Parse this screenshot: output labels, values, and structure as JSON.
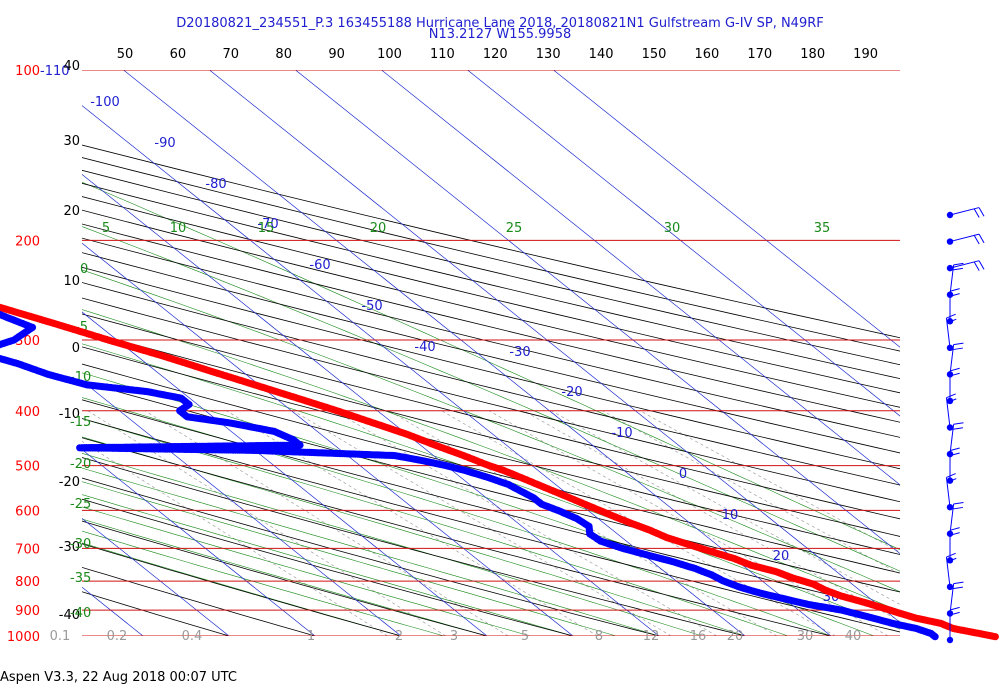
{
  "header": {
    "line1": "D20180821_234551_P.3 163455188 Hurricane Lane 2018, 20180821N1 Gulfstream G-IV SP, N49RF",
    "line2": "N13.2127 W155.9958"
  },
  "footer": "Aspen V3.3, 22 Aug 2018  00:07 UTC",
  "chart_data": {
    "type": "line",
    "title": "D20180821_234551_P.3 163455188 Hurricane Lane 2018, 20180821N1 Gulfstream G-IV SP, N49RF",
    "subtitle": "N13.2127 W155.9958",
    "pressure_levels_hpa": [
      "100",
      "200",
      "300",
      "400",
      "500",
      "600",
      "700",
      "800",
      "900",
      "1000"
    ],
    "pressure_label_100_extra": "-110",
    "top_labels": [
      "50",
      "60",
      "70",
      "80",
      "90",
      "100",
      "110",
      "120",
      "130",
      "140",
      "150",
      "160",
      "170",
      "180",
      "190"
    ],
    "height_kft_labels": [
      "40",
      "30",
      "20",
      "10",
      "0",
      "-10",
      "-20",
      "-30",
      "-40"
    ],
    "isotherm_labels_c": [
      "-100",
      "-90",
      "-80",
      "-70",
      "-60",
      "-50",
      "-40",
      "-30",
      "-20",
      "-10",
      "0",
      "10",
      "20",
      "30"
    ],
    "dry_adiabat_labels": [
      "5",
      "10",
      "15",
      "20",
      "25",
      "30",
      "35",
      "0",
      "-5",
      "-10",
      "-15",
      "-20",
      "-25",
      "-30",
      "-35",
      "-40"
    ],
    "mixing_ratio_labels": [
      "0.1",
      "0.2",
      "0.4",
      "1",
      "2",
      "3",
      "5",
      "8",
      "12",
      "16",
      "20",
      "30",
      "40"
    ],
    "series": [
      {
        "name": "Temperature",
        "color": "#ff0000",
        "points": [
          [
            1003,
            29.0
          ],
          [
            990,
            27.6
          ],
          [
            970,
            25.3
          ],
          [
            950,
            24.6
          ],
          [
            930,
            22.5
          ],
          [
            910,
            21.2
          ],
          [
            890,
            20.0
          ],
          [
            870,
            18.6
          ],
          [
            850,
            17.0
          ],
          [
            830,
            16.0
          ],
          [
            810,
            15.5
          ],
          [
            790,
            14.0
          ],
          [
            770,
            13.0
          ],
          [
            750,
            11.0
          ],
          [
            730,
            10.0
          ],
          [
            710,
            8.4
          ],
          [
            690,
            6.8
          ],
          [
            670,
            5.2
          ],
          [
            650,
            4.3
          ],
          [
            630,
            3.0
          ],
          [
            610,
            1.9
          ],
          [
            590,
            0.8
          ],
          [
            570,
            -0.3
          ],
          [
            550,
            -1.5
          ],
          [
            530,
            -2.7
          ],
          [
            510,
            -4.0
          ],
          [
            500,
            -5.0
          ],
          [
            480,
            -6.5
          ],
          [
            460,
            -8.3
          ],
          [
            440,
            -10.0
          ],
          [
            420,
            -12.3
          ],
          [
            400,
            -14.7
          ],
          [
            380,
            -17.5
          ],
          [
            360,
            -20.5
          ],
          [
            340,
            -23.7
          ],
          [
            320,
            -27.0
          ],
          [
            300,
            -31.0
          ],
          [
            280,
            -35.0
          ],
          [
            260,
            -39.5
          ],
          [
            240,
            -44.0
          ],
          [
            220,
            -49.0
          ],
          [
            200,
            -54.0
          ],
          [
            185,
            -58.0
          ],
          [
            172,
            -62.0
          ]
        ]
      },
      {
        "name": "Dewpoint",
        "color": "#0000ff",
        "points": [
          [
            1003,
            22.0
          ],
          [
            990,
            22.0
          ],
          [
            970,
            21.0
          ],
          [
            950,
            19.0
          ],
          [
            930,
            17.5
          ],
          [
            900,
            15.0
          ],
          [
            880,
            12.0
          ],
          [
            860,
            10.0
          ],
          [
            840,
            8.0
          ],
          [
            820,
            6.5
          ],
          [
            800,
            5.5
          ],
          [
            780,
            5.0
          ],
          [
            760,
            4.0
          ],
          [
            740,
            2.5
          ],
          [
            720,
            0.5
          ],
          [
            700,
            -1.5
          ],
          [
            680,
            -3.0
          ],
          [
            660,
            -3.2
          ],
          [
            640,
            -2.2
          ],
          [
            620,
            -2.5
          ],
          [
            600,
            -3.5
          ],
          [
            585,
            -4.5
          ],
          [
            570,
            -4.5
          ],
          [
            555,
            -5.0
          ],
          [
            540,
            -5.5
          ],
          [
            525,
            -6.8
          ],
          [
            510,
            -8.5
          ],
          [
            500,
            -10.0
          ],
          [
            490,
            -12.0
          ],
          [
            480,
            -14.5
          ],
          [
            470,
            -30.0
          ],
          [
            465,
            -50.0
          ],
          [
            460,
            -24.0
          ],
          [
            450,
            -24.0
          ],
          [
            435,
            -25.0
          ],
          [
            420,
            -29.0
          ],
          [
            410,
            -33.0
          ],
          [
            400,
            -33.0
          ],
          [
            390,
            -31.0
          ],
          [
            380,
            -31.0
          ],
          [
            370,
            -34.0
          ],
          [
            360,
            -40.0
          ],
          [
            345,
            -43.0
          ],
          [
            330,
            -45.0
          ],
          [
            315,
            -48.0
          ],
          [
            300,
            -42.0
          ],
          [
            285,
            -38.0
          ],
          [
            270,
            -40.0
          ],
          [
            250,
            -46.0
          ],
          [
            240,
            -44.0
          ],
          [
            230,
            -48.0
          ],
          [
            215,
            -53.0
          ],
          [
            205,
            -54.0
          ],
          [
            195,
            -55.0
          ]
        ]
      },
      {
        "name": "Dewpoint (surface marker)",
        "color": "#ff0000",
        "points": [
          [
            160,
            -70.0
          ]
        ]
      }
    ],
    "wind_barbs_hpa": [
      [
        160
      ],
      [
        190
      ],
      [
        260
      ],
      [
        310
      ],
      [
        350
      ],
      [
        380
      ],
      [
        420
      ],
      [
        460
      ],
      [
        500
      ],
      [
        560
      ],
      [
        620
      ],
      [
        680
      ],
      [
        740
      ],
      [
        800
      ],
      [
        860
      ],
      [
        920
      ],
      [
        980
      ]
    ]
  }
}
